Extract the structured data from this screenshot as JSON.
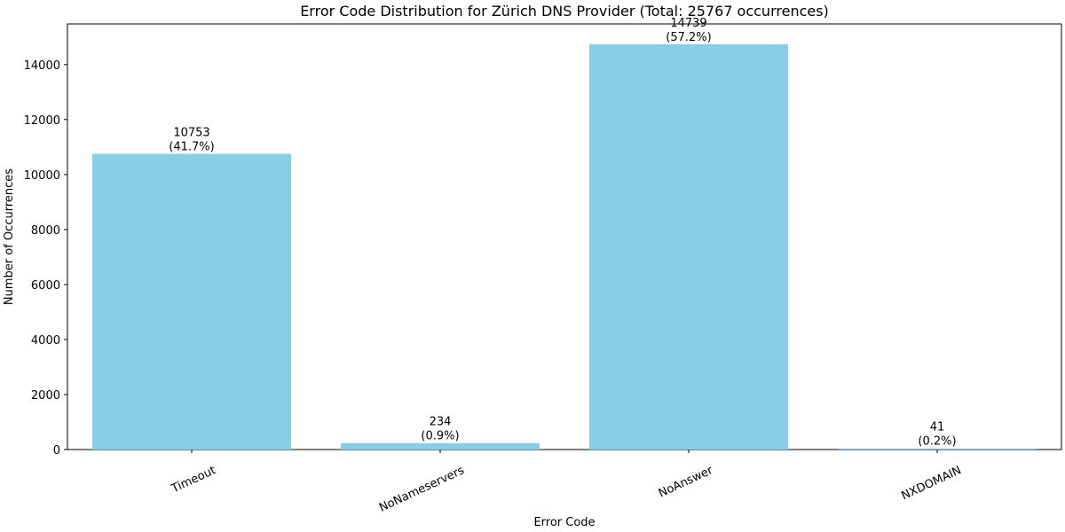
{
  "chart_data": {
    "type": "bar",
    "title": "Error Code Distribution for Zürich DNS Provider (Total: 25767 occurrences)",
    "xlabel": "Error Code",
    "ylabel": "Number of Occurrences",
    "categories": [
      "Timeout",
      "NoNameservers",
      "NoAnswer",
      "NXDOMAIN"
    ],
    "values": [
      10753,
      234,
      14739,
      41
    ],
    "value_labels": [
      "10753",
      "234",
      "14739",
      "41"
    ],
    "percent_labels": [
      "(41.7%)",
      "(0.9%)",
      "(57.2%)",
      "(0.2%)"
    ],
    "ylim": [
      0,
      15476
    ],
    "yticks": [
      0,
      2000,
      4000,
      6000,
      8000,
      10000,
      12000,
      14000
    ],
    "ytick_labels": [
      "0",
      "2000",
      "4000",
      "6000",
      "8000",
      "10000",
      "12000",
      "14000"
    ],
    "grid": false,
    "legend": "none",
    "bar_color": "#87CEEB",
    "xtick_rotation_deg": 25
  }
}
